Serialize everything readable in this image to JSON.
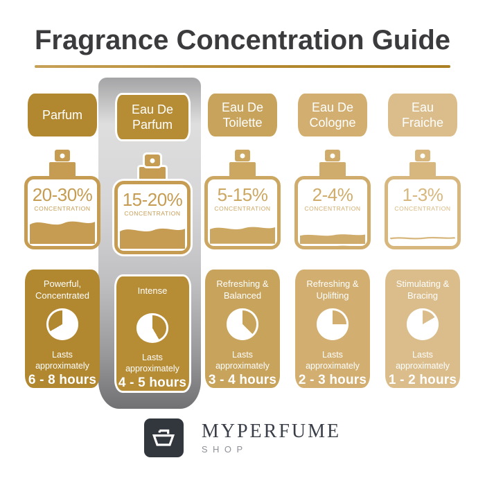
{
  "title": "Fragrance Concentration Guide",
  "title_color": "#3B3B3D",
  "accent_color": "#B1872F",
  "concentration_label": "CONCENTRATION",
  "lasts_label": "Lasts approximately",
  "highlight_strip_color": "#C0C0C2",
  "columns": [
    {
      "name": "Parfum",
      "concentration": "20-30%",
      "fill_percent": 42,
      "liquid_style": "fill",
      "descriptor": "Powerful, Concentrated",
      "duration": "6 - 8 hours",
      "clock_start_deg": 240,
      "clock_end_deg": 360,
      "color": "#B1872F",
      "bottle_color": "#C59C52",
      "highlighted": false
    },
    {
      "name": "Eau De Parfum",
      "concentration": "15-20%",
      "fill_percent": 38,
      "liquid_style": "fill",
      "descriptor": "Intense",
      "duration": "4 - 5 hours",
      "clock_start_deg": 0,
      "clock_end_deg": 150,
      "color": "#B68C35",
      "bottle_color": "#C59C52",
      "highlighted": true
    },
    {
      "name": "Eau De Toilette",
      "concentration": "5-15%",
      "fill_percent": 31,
      "liquid_style": "fill",
      "descriptor": "Refreshing & Balanced",
      "duration": "3 - 4 hours",
      "clock_start_deg": 0,
      "clock_end_deg": 135,
      "color": "#C8A35C",
      "bottle_color": "#CBA761",
      "highlighted": false
    },
    {
      "name": "Eau De Cologne",
      "concentration": "2-4%",
      "fill_percent": 18,
      "liquid_style": "fill",
      "descriptor": "Refreshing & Uplifting",
      "duration": "2 - 3 hours",
      "clock_start_deg": 0,
      "clock_end_deg": 90,
      "color": "#D2AF70",
      "bottle_color": "#D0AC6C",
      "highlighted": false
    },
    {
      "name": "Eau Fraiche",
      "concentration": "1-3%",
      "fill_percent": 13,
      "liquid_style": "line",
      "descriptor": "Stimulating & Bracing",
      "duration": "1 - 2 hours",
      "clock_start_deg": 0,
      "clock_end_deg": 60,
      "color": "#DBBD8B",
      "bottle_color": "#D7B77E",
      "highlighted": false
    }
  ],
  "brand": {
    "name": "MYPERFUME",
    "sub": "SHOP",
    "logo_icon": "perfume-bottle-icon",
    "logo_bg_color": "#32363D"
  }
}
